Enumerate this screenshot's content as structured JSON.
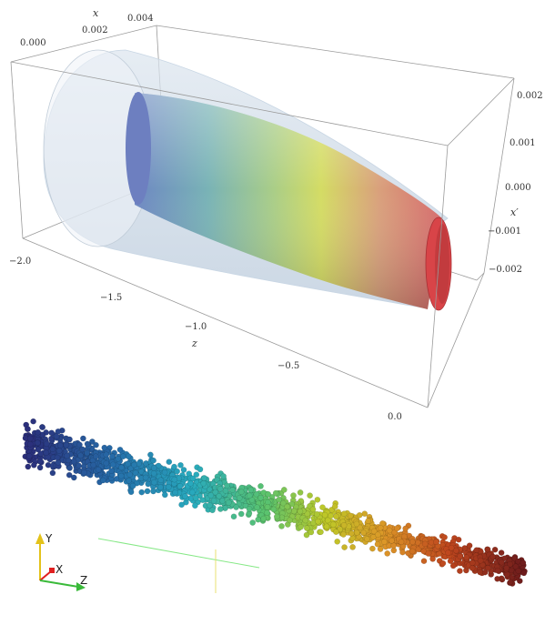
{
  "top_plot": {
    "axes": {
      "x": {
        "label": "x",
        "ticks": [
          "0.000",
          "0.002",
          "0.004"
        ]
      },
      "x_prime": {
        "label": "x′",
        "ticks": [
          "0.002",
          "0.001",
          "0.000",
          "−0.001",
          "−0.002"
        ]
      },
      "z": {
        "label": "z",
        "ticks": [
          "−2.0",
          "−1.5",
          "−1.0",
          "−0.5",
          "0.0"
        ]
      }
    },
    "colors": {
      "envelope": "#c4d3e2",
      "tube_start": "#6d83c4",
      "tube_mid": "#d4dc64",
      "tube_end": "#d6646a",
      "tube_cap": "#d84448"
    }
  },
  "bottom_plot": {
    "triad": {
      "y_label": "Y",
      "x_label": "X",
      "z_label": "Z"
    },
    "colors": {
      "y_axis": "#e3c21a",
      "x_axis": "#e02020",
      "z_axis": "#3aba3a",
      "reference_line": "#86e886",
      "reference_tick": "#e8e070",
      "points_start": "#2b2e7a",
      "points_mid": "#b8c028",
      "points_end": "#7a2020"
    }
  }
}
